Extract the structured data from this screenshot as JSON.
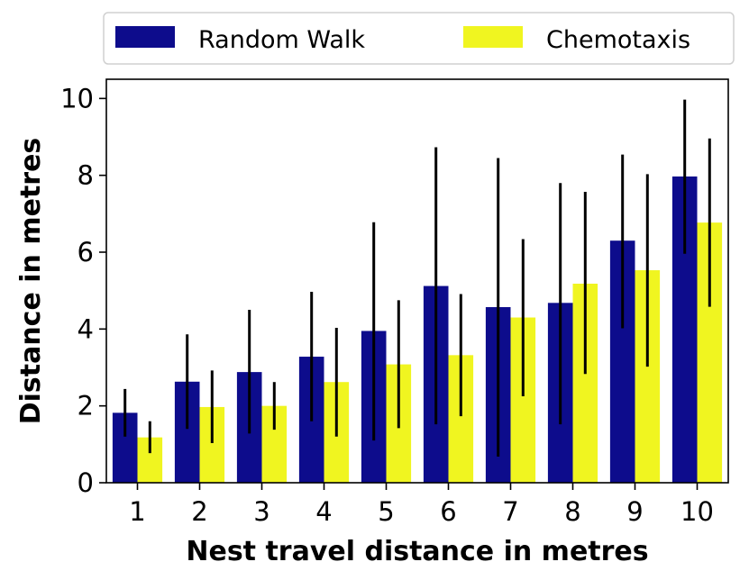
{
  "chart_data": {
    "type": "bar",
    "xlabel": "Nest travel distance in metres",
    "ylabel": "Distance in metres",
    "categories": [
      "1",
      "2",
      "3",
      "4",
      "5",
      "6",
      "7",
      "8",
      "9",
      "10"
    ],
    "ylim": [
      0,
      10.5
    ],
    "yticks": [
      "0",
      "2",
      "4",
      "6",
      "8",
      "10"
    ],
    "grid": false,
    "legend_position": "top",
    "series": [
      {
        "name": "Random Walk",
        "color": "#0d0c8c",
        "values": [
          1.82,
          2.63,
          2.88,
          3.28,
          3.95,
          5.12,
          4.57,
          4.68,
          6.3,
          7.97
        ],
        "error_low": [
          1.2,
          1.4,
          1.28,
          1.6,
          1.1,
          1.52,
          0.68,
          1.52,
          4.02,
          5.96
        ],
        "error_high": [
          2.44,
          3.86,
          4.5,
          4.97,
          6.78,
          8.73,
          8.45,
          7.8,
          8.54,
          9.97
        ]
      },
      {
        "name": "Chemotaxis",
        "color": "#f0f520",
        "values": [
          1.18,
          1.97,
          2.0,
          2.62,
          3.08,
          3.32,
          4.3,
          5.18,
          5.53,
          6.77
        ],
        "error_low": [
          0.77,
          1.03,
          1.38,
          1.2,
          1.42,
          1.73,
          2.25,
          2.83,
          3.02,
          4.58
        ],
        "error_high": [
          1.6,
          2.92,
          2.62,
          4.03,
          4.75,
          4.91,
          6.34,
          7.57,
          8.03,
          8.96
        ]
      }
    ]
  }
}
